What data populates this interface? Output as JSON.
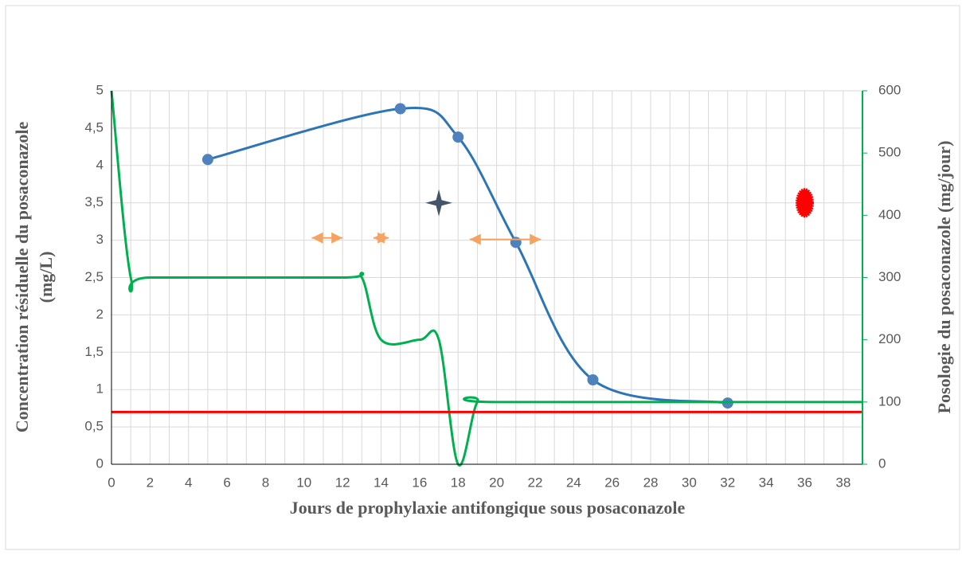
{
  "chart_data": {
    "type": "line",
    "xlabel": "Jours de prophylaxie antifongique sous posaconazole",
    "ylabel": [
      "Concentration résiduelle du posaconazole",
      "(mg/L)"
    ],
    "y2label": "Posologie du posaconazole (mg/jour)",
    "xlim": [
      0,
      39
    ],
    "ylim": [
      0,
      5
    ],
    "y2lim": [
      0,
      600
    ],
    "xticks": [
      0,
      2,
      4,
      6,
      8,
      10,
      12,
      14,
      16,
      18,
      20,
      22,
      24,
      26,
      28,
      30,
      32,
      34,
      36,
      38
    ],
    "xminorticks": [
      1,
      3,
      5,
      7,
      9,
      11,
      13,
      15,
      17,
      19,
      21,
      23,
      25,
      27,
      29,
      31,
      33,
      35,
      37,
      39
    ],
    "yticks": [
      0,
      {
        "value": 0.5,
        "label": "0,5"
      },
      1,
      {
        "value": 1.5,
        "label": "1,5"
      },
      2,
      {
        "value": 2.5,
        "label": "2,5"
      },
      3,
      {
        "value": 3.5,
        "label": "3,5"
      },
      4,
      {
        "value": 4.5,
        "label": "4,5"
      },
      5
    ],
    "y2ticks": [
      0,
      100,
      200,
      300,
      400,
      500,
      600
    ],
    "grid": true,
    "smooth": true,
    "series": [
      {
        "color": "#2e75b6",
        "marker_color": "#4f81bd",
        "marker": "circle",
        "x": [
          5,
          15,
          18,
          21,
          25,
          32
        ],
        "values": [
          4.08,
          4.76,
          4.38,
          2.97,
          1.13,
          0.82
        ]
      },
      {
        "color": "#00b050",
        "axis": "y2",
        "marker": "none",
        "x": [
          0,
          1,
          2,
          12,
          13,
          14,
          16,
          17,
          18,
          19,
          20,
          39
        ],
        "values": [
          600,
          300,
          300,
          300,
          300,
          200,
          200,
          200,
          0,
          100,
          100,
          100
        ]
      },
      {
        "color": "#ff0000",
        "marker": "none",
        "smooth": false,
        "x": [
          0,
          39
        ],
        "values": [
          0.7,
          0.7
        ]
      },
      {
        "color": "#44546a",
        "marker": "star",
        "x": [
          17
        ],
        "values": [
          3.5
        ]
      },
      {
        "color": "#f4a460",
        "marker": "double-arrow",
        "x": [
          10.4,
          13.6,
          18.6
        ],
        "x_end": [
          12,
          14.4,
          22.3
        ],
        "values": [
          3.03,
          3.03,
          3.01
        ]
      },
      {
        "color": "#ff0000",
        "marker": "blob",
        "x": [
          36
        ],
        "values": [
          3.5
        ]
      }
    ]
  }
}
